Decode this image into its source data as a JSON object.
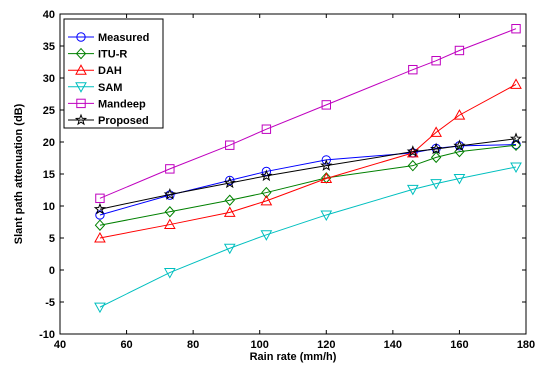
{
  "chart_data": {
    "type": "line",
    "xlabel": "Rain rate (mm/h)",
    "ylabel": "Slant path attenuation (dB)",
    "xlim": [
      40,
      180
    ],
    "ylim": [
      -10,
      40
    ],
    "xticks": [
      40,
      60,
      80,
      100,
      120,
      140,
      160,
      180
    ],
    "yticks": [
      -10,
      -5,
      0,
      5,
      10,
      15,
      20,
      25,
      30,
      35,
      40
    ],
    "grid": false,
    "legend_position": "top-left",
    "series": [
      {
        "name": "Measured",
        "color": "#0000ff",
        "marker": "circle",
        "x": [
          52,
          73,
          91,
          102,
          120,
          146,
          153,
          160,
          177
        ],
        "y": [
          8.6,
          11.7,
          14.0,
          15.4,
          17.2,
          18.3,
          19.0,
          19.4,
          19.6
        ]
      },
      {
        "name": "ITU-R",
        "color": "#008000",
        "marker": "diamond",
        "x": [
          52,
          73,
          91,
          102,
          120,
          146,
          153,
          160,
          177
        ],
        "y": [
          7.0,
          9.1,
          10.9,
          12.1,
          14.4,
          16.3,
          17.6,
          18.5,
          19.5
        ]
      },
      {
        "name": "DAH",
        "color": "#ff0000",
        "marker": "triangle-up",
        "x": [
          52,
          73,
          91,
          102,
          120,
          146,
          153,
          160,
          177
        ],
        "y": [
          5.0,
          7.1,
          9.0,
          10.8,
          14.3,
          18.3,
          21.5,
          24.2,
          29.0
        ]
      },
      {
        "name": "SAM",
        "color": "#00bfbf",
        "marker": "triangle-down",
        "x": [
          52,
          73,
          91,
          102,
          120,
          146,
          153,
          160,
          177
        ],
        "y": [
          -5.8,
          -0.4,
          3.4,
          5.5,
          8.6,
          12.6,
          13.5,
          14.3,
          16.1
        ]
      },
      {
        "name": "Mandeep",
        "color": "#bf00bf",
        "marker": "square",
        "x": [
          52,
          73,
          91,
          102,
          120,
          146,
          153,
          160,
          177
        ],
        "y": [
          11.2,
          15.8,
          19.5,
          22.0,
          25.8,
          31.3,
          32.7,
          34.3,
          37.7
        ]
      },
      {
        "name": "Proposed",
        "color": "#000000",
        "marker": "star",
        "x": [
          52,
          73,
          91,
          102,
          120,
          146,
          153,
          160,
          177
        ],
        "y": [
          9.5,
          11.8,
          13.6,
          14.7,
          16.3,
          18.5,
          18.9,
          19.4,
          20.5
        ]
      }
    ]
  }
}
